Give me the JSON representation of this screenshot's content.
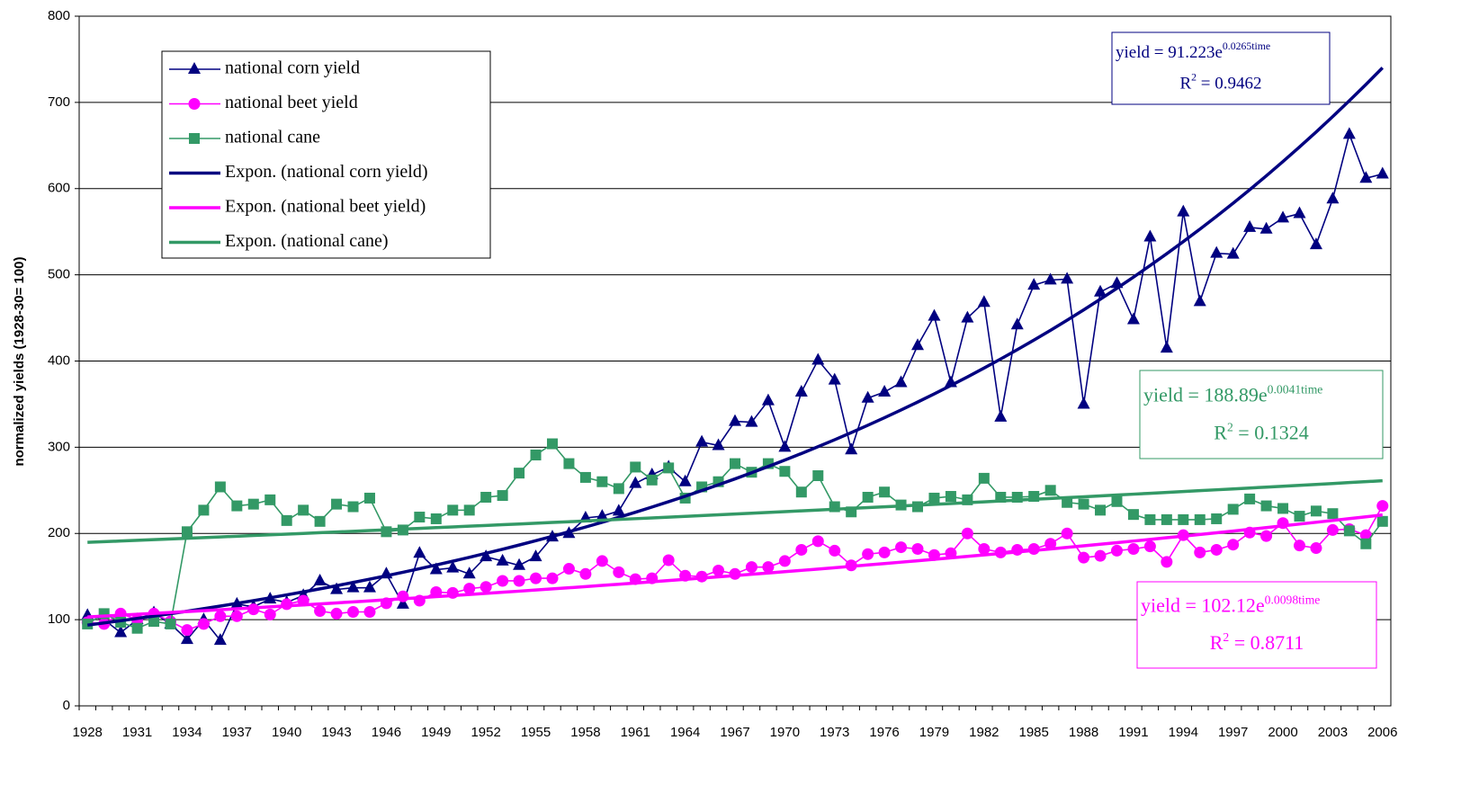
{
  "chart_data": {
    "type": "line",
    "y_label": "normalized yields (1928-30= 100)",
    "categories": [
      "1928",
      null,
      null,
      "1931",
      null,
      null,
      "1934",
      null,
      null,
      "1937",
      null,
      null,
      "1940",
      null,
      null,
      "1943",
      null,
      null,
      "1946",
      null,
      null,
      "1949",
      null,
      null,
      "1952",
      null,
      null,
      "1955",
      null,
      null,
      "1958",
      null,
      null,
      "1961",
      null,
      null,
      "1964",
      null,
      null,
      "1967",
      null,
      null,
      "1970",
      null,
      null,
      "1973",
      null,
      null,
      "1976",
      null,
      null,
      "1979",
      null,
      null,
      "1982",
      null,
      null,
      "1985",
      null,
      null,
      "1988",
      null,
      null,
      "1991",
      null,
      null,
      "1994",
      null,
      null,
      "1997",
      null,
      null,
      "2000",
      null,
      null,
      "2003",
      null,
      null,
      "2006"
    ],
    "ylim": [
      0,
      800
    ],
    "yticks": [
      0,
      100,
      200,
      300,
      400,
      500,
      600,
      700,
      800
    ],
    "grid": true,
    "series": [
      {
        "name": "national corn yield",
        "color": "#000080",
        "marker": "triangle",
        "values": [
          105,
          100,
          85,
          100,
          108,
          95,
          77,
          100,
          76,
          118,
          115,
          124,
          120,
          128,
          145,
          135,
          137,
          137,
          153,
          118,
          177,
          158,
          160,
          153,
          173,
          168,
          163,
          173,
          196,
          200,
          218,
          220,
          226,
          258,
          268,
          277,
          260,
          306,
          302,
          330,
          329,
          354,
          300,
          364,
          401,
          378,
          297,
          357,
          364,
          375,
          418,
          452,
          375,
          450,
          468,
          335,
          442,
          488,
          494,
          495,
          350,
          480,
          490,
          448,
          544,
          415,
          573,
          469,
          525,
          524,
          555,
          553,
          566,
          571,
          535,
          588,
          663,
          612,
          617
        ]
      },
      {
        "name": "national beet yield",
        "color": "#ff00ff",
        "marker": "circle",
        "values": [
          97,
          95,
          107,
          100,
          107,
          98,
          88,
          95,
          104,
          104,
          112,
          106,
          118,
          122,
          110,
          107,
          109,
          109,
          119,
          127,
          122,
          132,
          131,
          136,
          138,
          145,
          145,
          148,
          148,
          159,
          153,
          168,
          155,
          147,
          148,
          169,
          151,
          150,
          157,
          153,
          161,
          161,
          168,
          181,
          191,
          180,
          163,
          176,
          178,
          184,
          182,
          175,
          177,
          200,
          182,
          178,
          181,
          182,
          188,
          200,
          172,
          174,
          180,
          182,
          185,
          167,
          198,
          178,
          181,
          187,
          201,
          197,
          212,
          186,
          183,
          204,
          205,
          198,
          232
        ]
      },
      {
        "name": "national cane",
        "color": "#339966",
        "marker": "square",
        "values": [
          95,
          107,
          97,
          90,
          98,
          95,
          202,
          227,
          254,
          232,
          234,
          239,
          215,
          227,
          214,
          234,
          231,
          241,
          202,
          204,
          219,
          217,
          227,
          227,
          242,
          244,
          270,
          291,
          304,
          281,
          265,
          260,
          252,
          277,
          262,
          276,
          241,
          254,
          260,
          281,
          271,
          281,
          272,
          248,
          267,
          231,
          225,
          242,
          248,
          233,
          231,
          241,
          243,
          239,
          264,
          242,
          242,
          243,
          250,
          236,
          234,
          227,
          237,
          222,
          216,
          216,
          216,
          216,
          217,
          228,
          240,
          232,
          229,
          220,
          226,
          223,
          203,
          188,
          214
        ]
      },
      {
        "name": "Expon. (national corn yield)",
        "color": "#000080",
        "trend": {
          "a": 91.223,
          "b": 0.0265
        },
        "equation": "yield = 91.223e",
        "exponent": "0.0265time",
        "r2_base": "R",
        "r2_exp": "2",
        "r2_rest": " = 0.9462"
      },
      {
        "name": "Expon. (national beet yield)",
        "color": "#ff00ff",
        "trend": {
          "a": 102.12,
          "b": 0.0098
        },
        "equation": "yield = 102.12e",
        "exponent": "0.0098time",
        "r2_base": "R",
        "r2_exp": "2",
        "r2_rest": " = 0.8711"
      },
      {
        "name": "Expon. (national cane)",
        "color": "#339966",
        "trend": {
          "a": 188.89,
          "b": 0.0041
        },
        "equation": "yield = 188.89e",
        "exponent": "0.0041time",
        "r2_base": "R",
        "r2_exp": "2",
        "r2_rest": " = 0.1324"
      }
    ]
  }
}
